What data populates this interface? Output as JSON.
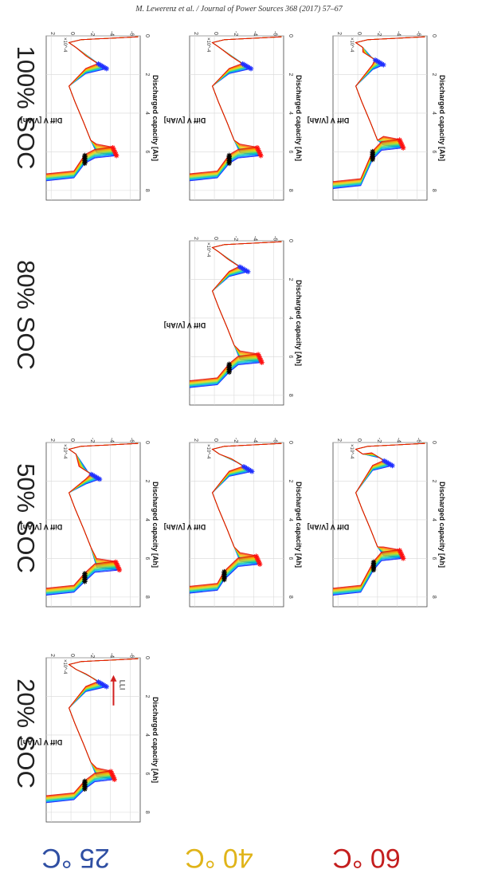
{
  "header": {
    "citation": "M. Lewerenz et al. / Journal of Power Sources 368 (2017) 57–67"
  },
  "figure": {
    "soc_labels": [
      "20% SOC",
      "50% SOC",
      "80% SOC",
      "100% SOC"
    ],
    "temperature_labels": [
      {
        "text": "25 °C",
        "color": "#2f4fa3"
      },
      {
        "text": "40 °C",
        "color": "#e0b419"
      },
      {
        "text": "60 °C",
        "color": "#c41e1e"
      }
    ],
    "annotation": {
      "text": "LLI",
      "color": "#d22020"
    }
  },
  "chart_data": {
    "type": "line",
    "title": "",
    "xlabel": "Discharged capacity [Ah]",
    "ylabel": "Diff V [V/Ah]",
    "y_exponent": "×10^-4",
    "xlim": [
      0,
      8.5
    ],
    "ylim": [
      -7,
      2.5
    ],
    "xticks": [
      0,
      2,
      4,
      6,
      8
    ],
    "yticks": [
      2,
      0,
      -2,
      -4,
      -6
    ],
    "grid": true,
    "legend": "none",
    "color_scale": [
      "#0000ff",
      "#00a8ff",
      "#00d0a0",
      "#a0e040",
      "#f0d000",
      "#ff8000",
      "#e00000"
    ],
    "panels": [
      {
        "soc": "20% SOC",
        "temperature": "25 °C",
        "peak1": {
          "x": 1.5,
          "y": -3.6
        },
        "peak2": {
          "x": 6.3,
          "y": -4.4
        },
        "peak2_top": {
          "x": 6.8,
          "y": -1.4
        },
        "end_x": 7.5
      },
      {
        "soc": "50% SOC",
        "temperature": "25 °C",
        "peak1": {
          "x": 1.9,
          "y": -2.9
        },
        "peak2": {
          "x": 6.6,
          "y": -4.9
        },
        "peak2_top": {
          "x": 7.2,
          "y": -1.4
        },
        "end_x": 7.9
      },
      {
        "soc": "50% SOC",
        "temperature": "40 °C",
        "peak1": {
          "x": 1.5,
          "y": -3.8
        },
        "peak2": {
          "x": 6.3,
          "y": -4.6
        },
        "peak2_top": {
          "x": 7.1,
          "y": -1.0
        },
        "end_x": 7.8
      },
      {
        "soc": "50% SOC",
        "temperature": "60 °C",
        "peak1": {
          "x": 1.2,
          "y": -3.5
        },
        "peak2": {
          "x": 6.0,
          "y": -4.6
        },
        "peak2_top": {
          "x": 6.6,
          "y": -1.6
        },
        "end_x": 7.9
      },
      {
        "soc": "80% SOC",
        "temperature": "40 °C",
        "peak1": {
          "x": 1.6,
          "y": -3.4
        },
        "peak2": {
          "x": 6.3,
          "y": -4.8
        },
        "peak2_top": {
          "x": 6.8,
          "y": -1.5
        },
        "end_x": 7.6
      },
      {
        "soc": "100% SOC",
        "temperature": "25 °C",
        "peak1": {
          "x": 1.7,
          "y": -3.6
        },
        "peak2": {
          "x": 6.2,
          "y": -4.6
        },
        "peak2_top": {
          "x": 6.6,
          "y": -1.4
        },
        "end_x": 7.5
      },
      {
        "soc": "100% SOC",
        "temperature": "40 °C",
        "peak1": {
          "x": 1.7,
          "y": -3.7
        },
        "peak2": {
          "x": 6.2,
          "y": -4.7
        },
        "peak2_top": {
          "x": 6.6,
          "y": -1.5
        },
        "end_x": 7.5
      },
      {
        "soc": "100% SOC",
        "temperature": "60 °C",
        "peak1": {
          "x": 1.5,
          "y": -2.6
        },
        "peak2": {
          "x": 5.8,
          "y": -4.6
        },
        "peak2_top": {
          "x": 6.4,
          "y": -1.5
        },
        "end_x": 7.9
      }
    ]
  }
}
